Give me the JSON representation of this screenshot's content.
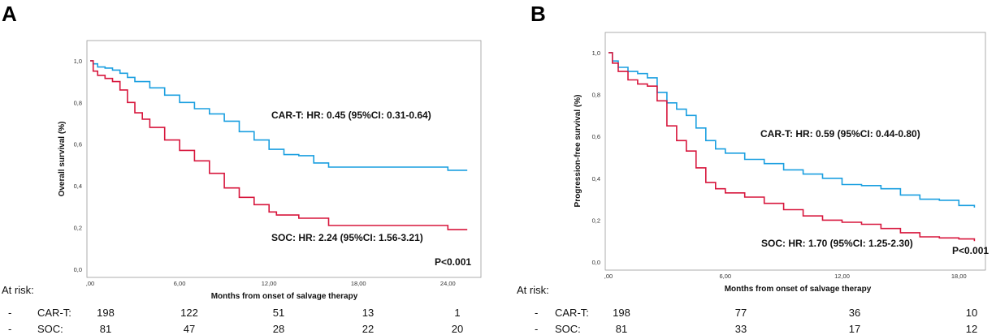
{
  "colors": {
    "car_t": "#1a9fe0",
    "soc": "#d7163c",
    "axis": "#9a9a9a"
  },
  "chart_data": [
    {
      "panel": "A",
      "type": "line",
      "ylabel": "Overall survival (%)",
      "xlabel": "Months from onset of salvage therapy",
      "xlim": [
        0,
        26
      ],
      "ylim": [
        0,
        1.05
      ],
      "xticks": [
        0,
        6,
        12,
        18,
        24
      ],
      "xtick_labels": [
        ",00",
        "6,00",
        "12,00",
        "18,00",
        "24,00"
      ],
      "yticks": [
        0,
        0.2,
        0.4,
        0.6,
        0.8,
        1.0
      ],
      "ytick_labels": [
        "0,0",
        "0,2",
        "0,4",
        "0,6",
        "0,8",
        "1,0"
      ],
      "series": [
        {
          "name": "CAR-T",
          "x": [
            0,
            0.2,
            0.5,
            1.0,
            1.5,
            2.0,
            2.5,
            3.0,
            4.0,
            5.0,
            6.0,
            7.0,
            8.0,
            9.0,
            10.0,
            11.0,
            12.0,
            13.0,
            14.0,
            15.0,
            16.0,
            18.0,
            20.0,
            22.0,
            24.0,
            25.3
          ],
          "y": [
            1.0,
            0.985,
            0.97,
            0.965,
            0.955,
            0.94,
            0.92,
            0.9,
            0.87,
            0.835,
            0.8,
            0.77,
            0.745,
            0.71,
            0.66,
            0.62,
            0.575,
            0.55,
            0.545,
            0.51,
            0.49,
            0.49,
            0.49,
            0.49,
            0.475,
            0.475
          ]
        },
        {
          "name": "SOC",
          "x": [
            0,
            0.2,
            0.5,
            1.0,
            1.5,
            2.0,
            2.5,
            3.0,
            3.5,
            4.0,
            5.0,
            6.0,
            7.0,
            8.0,
            9.0,
            10.0,
            11.0,
            12.0,
            12.5,
            13.0,
            14.0,
            16.0,
            18.0,
            20.0,
            22.0,
            24.0,
            25.3
          ],
          "y": [
            1.0,
            0.95,
            0.93,
            0.915,
            0.9,
            0.86,
            0.8,
            0.75,
            0.72,
            0.68,
            0.62,
            0.57,
            0.52,
            0.46,
            0.39,
            0.345,
            0.31,
            0.275,
            0.26,
            0.26,
            0.245,
            0.21,
            0.21,
            0.21,
            0.21,
            0.19,
            0.19
          ]
        }
      ],
      "annotations": {
        "car_t_hr": "CAR-T: HR: 0.45 (95%CI: 0.31-0.64)",
        "soc_hr": "SOC: HR: 2.24 (95%CI: 1.56-3.21)",
        "p_value": "P<0.001"
      },
      "risk_table": {
        "label": "At risk:",
        "rows": [
          {
            "dash": "-",
            "group": "CAR-T:",
            "values": [
              "198",
              "122",
              "51",
              "13",
              "1"
            ]
          },
          {
            "dash": "-",
            "group": "SOC:",
            "values": [
              "81",
              "47",
              "28",
              "22",
              "20"
            ]
          }
        ]
      }
    },
    {
      "panel": "B",
      "type": "line",
      "ylabel": "Progression-free survival (%)",
      "xlabel": "Months from onset of salvage therapy",
      "xlim": [
        0,
        19.2
      ],
      "ylim": [
        0,
        1.05
      ],
      "xticks": [
        0,
        6,
        12,
        18
      ],
      "xtick_labels": [
        ",00",
        "6,00",
        "12,00",
        "18,00"
      ],
      "yticks": [
        0,
        0.2,
        0.4,
        0.6,
        0.8,
        1.0
      ],
      "ytick_labels": [
        "0,0",
        "0,2",
        "0,4",
        "0,6",
        "0,8",
        "1,0"
      ],
      "series": [
        {
          "name": "CAR-T",
          "x": [
            0,
            0.2,
            0.5,
            1.0,
            1.5,
            2.0,
            2.5,
            3.0,
            3.5,
            4.0,
            4.5,
            5.0,
            5.5,
            6.0,
            7.0,
            8.0,
            9.0,
            10.0,
            11.0,
            12.0,
            13.0,
            14.0,
            15.0,
            16.0,
            17.0,
            18.0,
            18.8
          ],
          "y": [
            1.0,
            0.96,
            0.93,
            0.91,
            0.9,
            0.88,
            0.81,
            0.76,
            0.73,
            0.7,
            0.64,
            0.58,
            0.54,
            0.52,
            0.49,
            0.47,
            0.44,
            0.42,
            0.4,
            0.37,
            0.365,
            0.35,
            0.32,
            0.3,
            0.295,
            0.27,
            0.26
          ]
        },
        {
          "name": "SOC",
          "x": [
            0,
            0.2,
            0.5,
            1.0,
            1.5,
            2.0,
            2.5,
            3.0,
            3.5,
            4.0,
            4.5,
            5.0,
            5.5,
            6.0,
            7.0,
            8.0,
            9.0,
            10.0,
            11.0,
            12.0,
            13.0,
            14.0,
            15.0,
            16.0,
            17.0,
            18.0,
            18.8
          ],
          "y": [
            1.0,
            0.95,
            0.91,
            0.87,
            0.85,
            0.84,
            0.77,
            0.65,
            0.58,
            0.53,
            0.45,
            0.38,
            0.35,
            0.33,
            0.31,
            0.28,
            0.25,
            0.22,
            0.2,
            0.19,
            0.18,
            0.16,
            0.14,
            0.12,
            0.115,
            0.11,
            0.1
          ]
        }
      ],
      "annotations": {
        "car_t_hr": "CAR-T: HR: 0.59 (95%CI: 0.44-0.80)",
        "soc_hr": "SOC: HR: 1.70 (95%CI: 1.25-2.30)",
        "p_value": "P<0.001"
      },
      "risk_table": {
        "label": "At risk:",
        "rows": [
          {
            "dash": "-",
            "group": "CAR-T:",
            "values": [
              "198",
              "77",
              "36",
              "10"
            ]
          },
          {
            "dash": "-",
            "group": "SOC:",
            "values": [
              "81",
              "33",
              "17",
              "12"
            ]
          }
        ]
      }
    }
  ]
}
